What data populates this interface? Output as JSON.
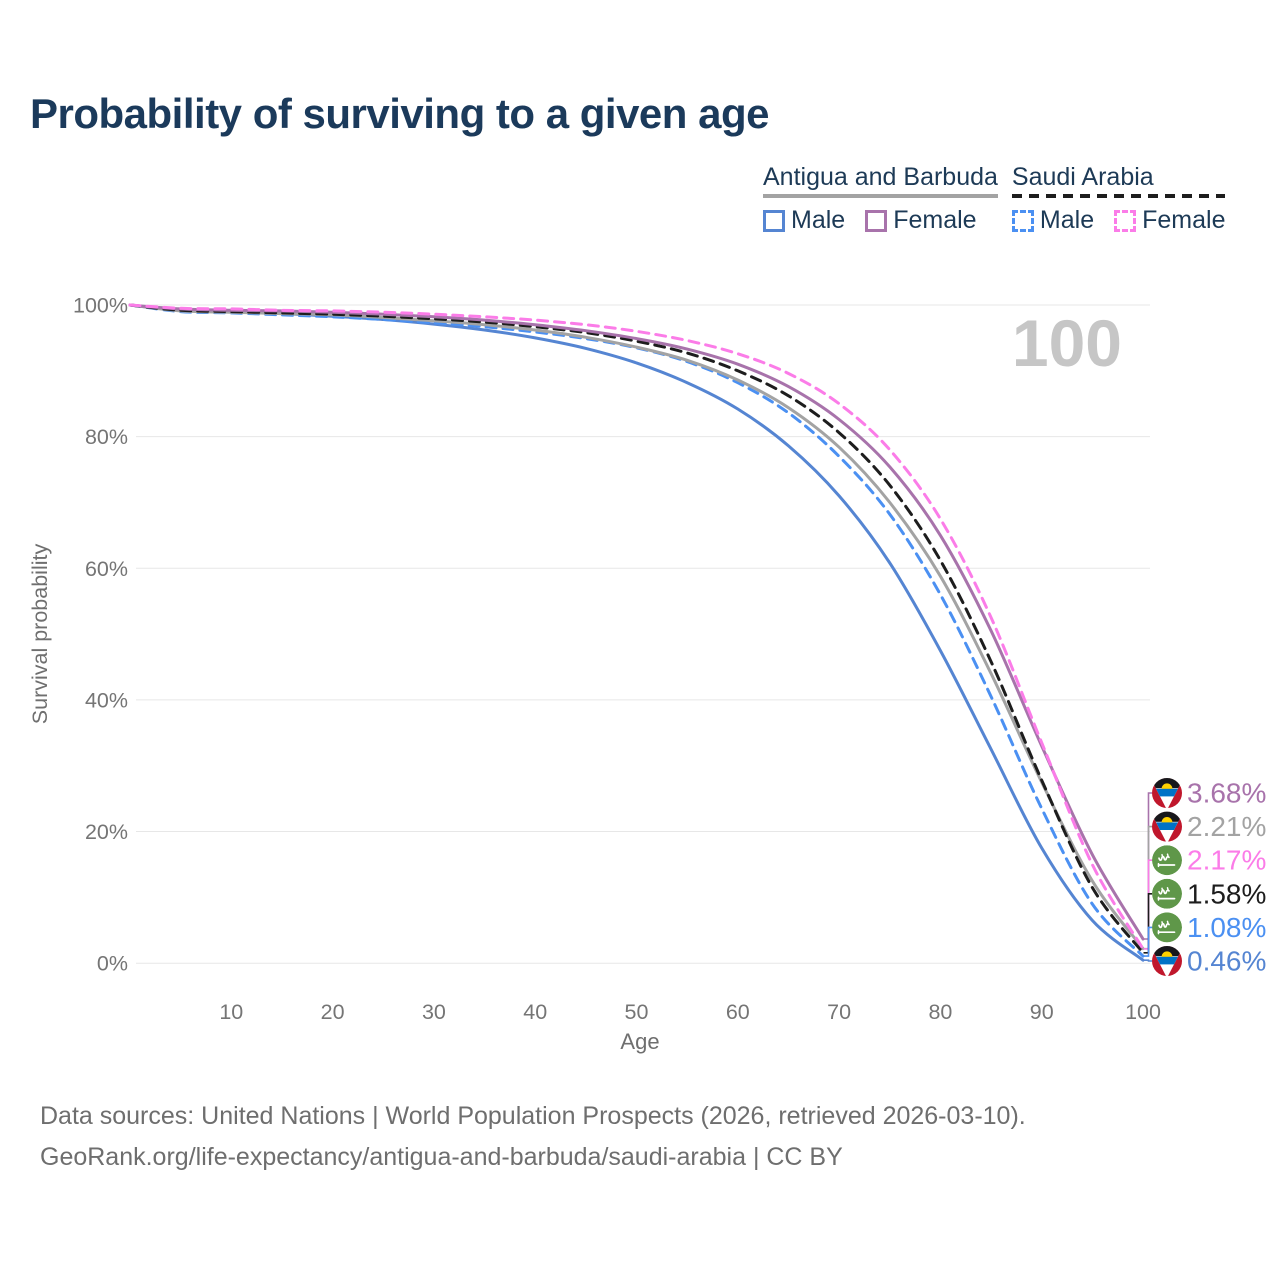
{
  "title": "Probability of surviving to a given age",
  "watermark": "100",
  "legend": {
    "groups": [
      {
        "label": "Antigua and Barbuda",
        "line_style": "solid",
        "rule_color": "#a3a3a3",
        "items": [
          {
            "label": "Male",
            "color": "#5585d2",
            "dash": false
          },
          {
            "label": "Female",
            "color": "#a873ab",
            "dash": false
          }
        ]
      },
      {
        "label": "Saudi Arabia",
        "line_style": "dashed",
        "rule_color": "#1d1d1d",
        "items": [
          {
            "label": "Male",
            "color": "#4b90f2",
            "dash": true
          },
          {
            "label": "Female",
            "color": "#fb7ce8",
            "dash": true
          }
        ]
      }
    ]
  },
  "chart_data": {
    "type": "line",
    "title": "Probability of surviving to a given age",
    "xlabel": "Age",
    "ylabel": "Survival probability",
    "xlim": [
      0,
      100
    ],
    "ylim": [
      0,
      100
    ],
    "x_ticks": [
      10,
      20,
      30,
      40,
      50,
      60,
      70,
      80,
      90,
      100
    ],
    "y_ticks": [
      0,
      20,
      40,
      60,
      80,
      100
    ],
    "y_tick_format": "percent",
    "grid": "horizontal",
    "legend_position": "top-right",
    "x": [
      0,
      5,
      10,
      15,
      20,
      25,
      30,
      35,
      40,
      45,
      50,
      55,
      60,
      65,
      70,
      75,
      80,
      85,
      90,
      95,
      100
    ],
    "series": [
      {
        "name": "Antigua and Barbuda Male",
        "country": "Antigua and Barbuda",
        "sex": "Male",
        "color": "#5585d2",
        "dash": false,
        "flag": "antigua-and-barbuda",
        "end_label": "0.46%",
        "values": [
          100,
          99.2,
          99.0,
          98.7,
          98.3,
          97.8,
          97.1,
          96.2,
          95.0,
          93.4,
          91.2,
          88.2,
          84.2,
          78.6,
          71.0,
          60.8,
          47.5,
          32.5,
          17.5,
          6.5,
          0.46
        ]
      },
      {
        "name": "Saudi Arabia Male",
        "country": "Saudi Arabia",
        "sex": "Male",
        "color": "#4b90f2",
        "dash": true,
        "flag": "saudi-arabia",
        "end_label": "1.08%",
        "values": [
          100,
          99.0,
          98.8,
          98.5,
          98.2,
          97.8,
          97.3,
          96.7,
          95.9,
          94.9,
          93.5,
          91.4,
          88.2,
          83.6,
          77.0,
          68.2,
          56.0,
          40.5,
          23.5,
          9.0,
          1.08
        ]
      },
      {
        "name": "Antigua and Barbuda",
        "country": "Antigua and Barbuda",
        "sex": "Both",
        "color": "#a3a3a3",
        "dash": false,
        "flag": "antigua-and-barbuda",
        "end_label": "2.21%",
        "values": [
          100,
          99.1,
          98.9,
          98.7,
          98.5,
          98.1,
          97.6,
          97.0,
          96.2,
          95.1,
          93.6,
          91.6,
          88.6,
          84.4,
          78.4,
          70.0,
          58.8,
          44.0,
          27.5,
          12.5,
          2.21
        ]
      },
      {
        "name": "Saudi Arabia",
        "country": "Saudi Arabia",
        "sex": "Both",
        "color": "#1d1d1d",
        "dash": true,
        "flag": "saudi-arabia",
        "end_label": "1.58%",
        "values": [
          100,
          99.2,
          99.0,
          98.8,
          98.6,
          98.3,
          97.9,
          97.4,
          96.7,
          95.8,
          94.5,
          92.7,
          90.0,
          86.2,
          80.6,
          72.6,
          61.2,
          45.8,
          27.8,
          11.5,
          1.58
        ]
      },
      {
        "name": "Antigua and Barbuda Female",
        "country": "Antigua and Barbuda",
        "sex": "Female",
        "color": "#a873ab",
        "dash": false,
        "flag": "antigua-and-barbuda",
        "end_label": "3.68%",
        "values": [
          100,
          99.4,
          99.2,
          99.1,
          98.9,
          98.6,
          98.2,
          97.7,
          97.0,
          96.1,
          94.9,
          93.3,
          91.0,
          87.6,
          82.6,
          75.4,
          65.0,
          50.5,
          33.0,
          16.5,
          3.68
        ]
      },
      {
        "name": "Saudi Arabia Female",
        "country": "Saudi Arabia",
        "sex": "Female",
        "color": "#fb7ce8",
        "dash": true,
        "flag": "saudi-arabia",
        "end_label": "2.17%",
        "values": [
          100,
          99.5,
          99.4,
          99.2,
          99.1,
          98.9,
          98.6,
          98.2,
          97.7,
          97.0,
          96.0,
          94.6,
          92.6,
          89.6,
          85.0,
          78.0,
          67.5,
          52.5,
          33.5,
          15.0,
          2.17
        ]
      }
    ]
  },
  "footer": {
    "line1": "Data sources: United Nations | World Population Prospects (2026, retrieved 2026-03-10).",
    "line2": "GeoRank.org/life-expectancy/antigua-and-barbuda/saudi-arabia | CC BY"
  }
}
